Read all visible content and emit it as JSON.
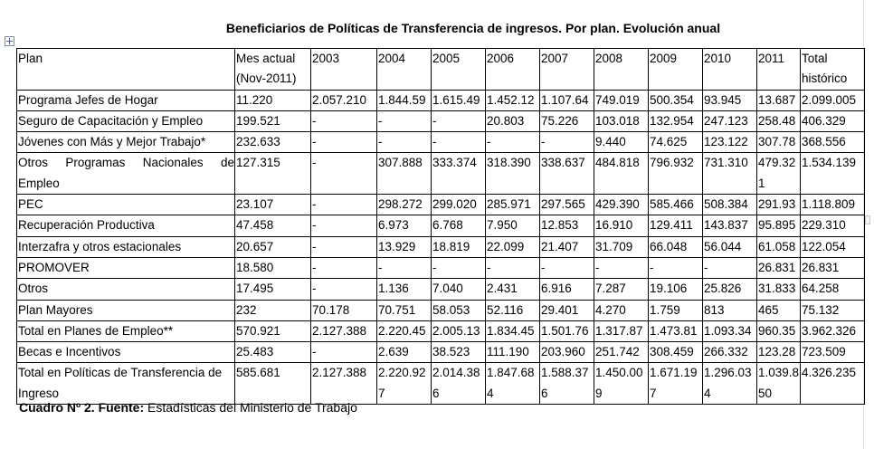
{
  "title": "Beneficiarios de Políticas de Transferencia de ingresos. Por plan. Evolución anual",
  "table": {
    "rows": [
      {
        "label": "Programa Jefes de Hogar",
        "cells": [
          "11.220",
          "2.057.210",
          "1.844.59",
          "1.615.49",
          "1.452.12",
          "1.107.64",
          "749.019",
          "500.354",
          "93.945",
          "13.687",
          "2.099.005"
        ]
      },
      {
        "label": "Seguro de Capacitación y Empleo",
        "cells": [
          "199.521",
          "-",
          "-",
          "-",
          "20.803",
          "75.226",
          "103.018",
          "132.954",
          "247.123",
          "258.48",
          "406.329"
        ]
      },
      {
        "label": "Jóvenes con Más y Mejor Trabajo*",
        "cells": [
          "232.633",
          "-",
          "-",
          "-",
          "-",
          "-",
          "9.440",
          "74.625",
          "123.122",
          "307.78",
          "368.556"
        ]
      },
      {
        "label": "Otros Programas Nacionales de Empleo",
        "cells": [
          "127.315",
          "-",
          "307.888",
          "333.374",
          "318.390",
          "338.637",
          "484.818",
          "796.932",
          "731.310",
          "479.321",
          "1.534.139"
        ]
      },
      {
        "label": "PEC",
        "cells": [
          "23.107",
          "-",
          "298.272",
          "299.020",
          "285.971",
          "297.565",
          "429.390",
          "585.466",
          "508.384",
          "291.93",
          "1.118.809"
        ]
      },
      {
        "label": "Recuperación Productiva",
        "cells": [
          "47.458",
          "-",
          "6.973",
          "6.768",
          "7.950",
          "12.853",
          "16.910",
          "129.411",
          "143.837",
          "95.895",
          "229.310"
        ]
      },
      {
        "label": "Interzafra y otros estacionales",
        "cells": [
          "20.657",
          "-",
          "13.929",
          "18.819",
          "22.099",
          "21.407",
          "31.709",
          "66.048",
          "56.044",
          "61.058",
          "122.054"
        ]
      },
      {
        "label": "PROMOVER",
        "cells": [
          "18.580",
          "-",
          "-",
          "-",
          "-",
          "-",
          "-",
          "-",
          "-",
          "26.831",
          "26.831"
        ]
      },
      {
        "label": "Otros",
        "cells": [
          "17.495",
          "-",
          "1.136",
          "7.040",
          "2.431",
          "6.916",
          "7.287",
          "19.106",
          "25.826",
          "31.833",
          "64.258"
        ]
      },
      {
        "label": "Plan Mayores",
        "cells": [
          "232",
          "70.178",
          "70.751",
          "58.053",
          "52.116",
          "29.401",
          "4.270",
          "1.759",
          "813",
          "465",
          "75.132"
        ]
      },
      {
        "label": "Total en Planes de Empleo**",
        "cells": [
          "570.921",
          "2.127.388",
          "2.220.45",
          "2.005.13",
          "1.834.45",
          "1.501.76",
          "1.317.87",
          "1.473.81",
          "1.093.34",
          "960.35",
          "3.962.326"
        ]
      },
      {
        "label": "Becas e Incentivos",
        "cells": [
          "25.483",
          "-",
          "2.639",
          "38.523",
          "111.190",
          "203.960",
          "251.742",
          "308.459",
          "266.332",
          "123.28",
          "723.509"
        ]
      },
      {
        "label": "Total en Políticas de Transferencia de Ingreso",
        "cells": [
          "585.681",
          "2.127.388",
          "2.220.927",
          "2.014.386",
          "1.847.684",
          "1.588.376",
          "1.450.009",
          "1.671.197",
          "1.296.034",
          "1.039.850",
          "4.326.235"
        ]
      }
    ]
  },
  "headers": {
    "plan": "Plan",
    "mes_actual": "Mes actual (Nov-2011)",
    "y2003": "2003",
    "y2004": "2004",
    "y2005": "2005",
    "y2006": "2006",
    "y2007": "2007",
    "y2008": "2008",
    "y2009": "2009",
    "y2010": "2010",
    "y2011": "2011",
    "total": "Total histórico"
  },
  "caption": {
    "prefix": "Cuadro Nº 2. Fuente:",
    "text": " Estadísticas del Ministerio de Trabajo"
  }
}
